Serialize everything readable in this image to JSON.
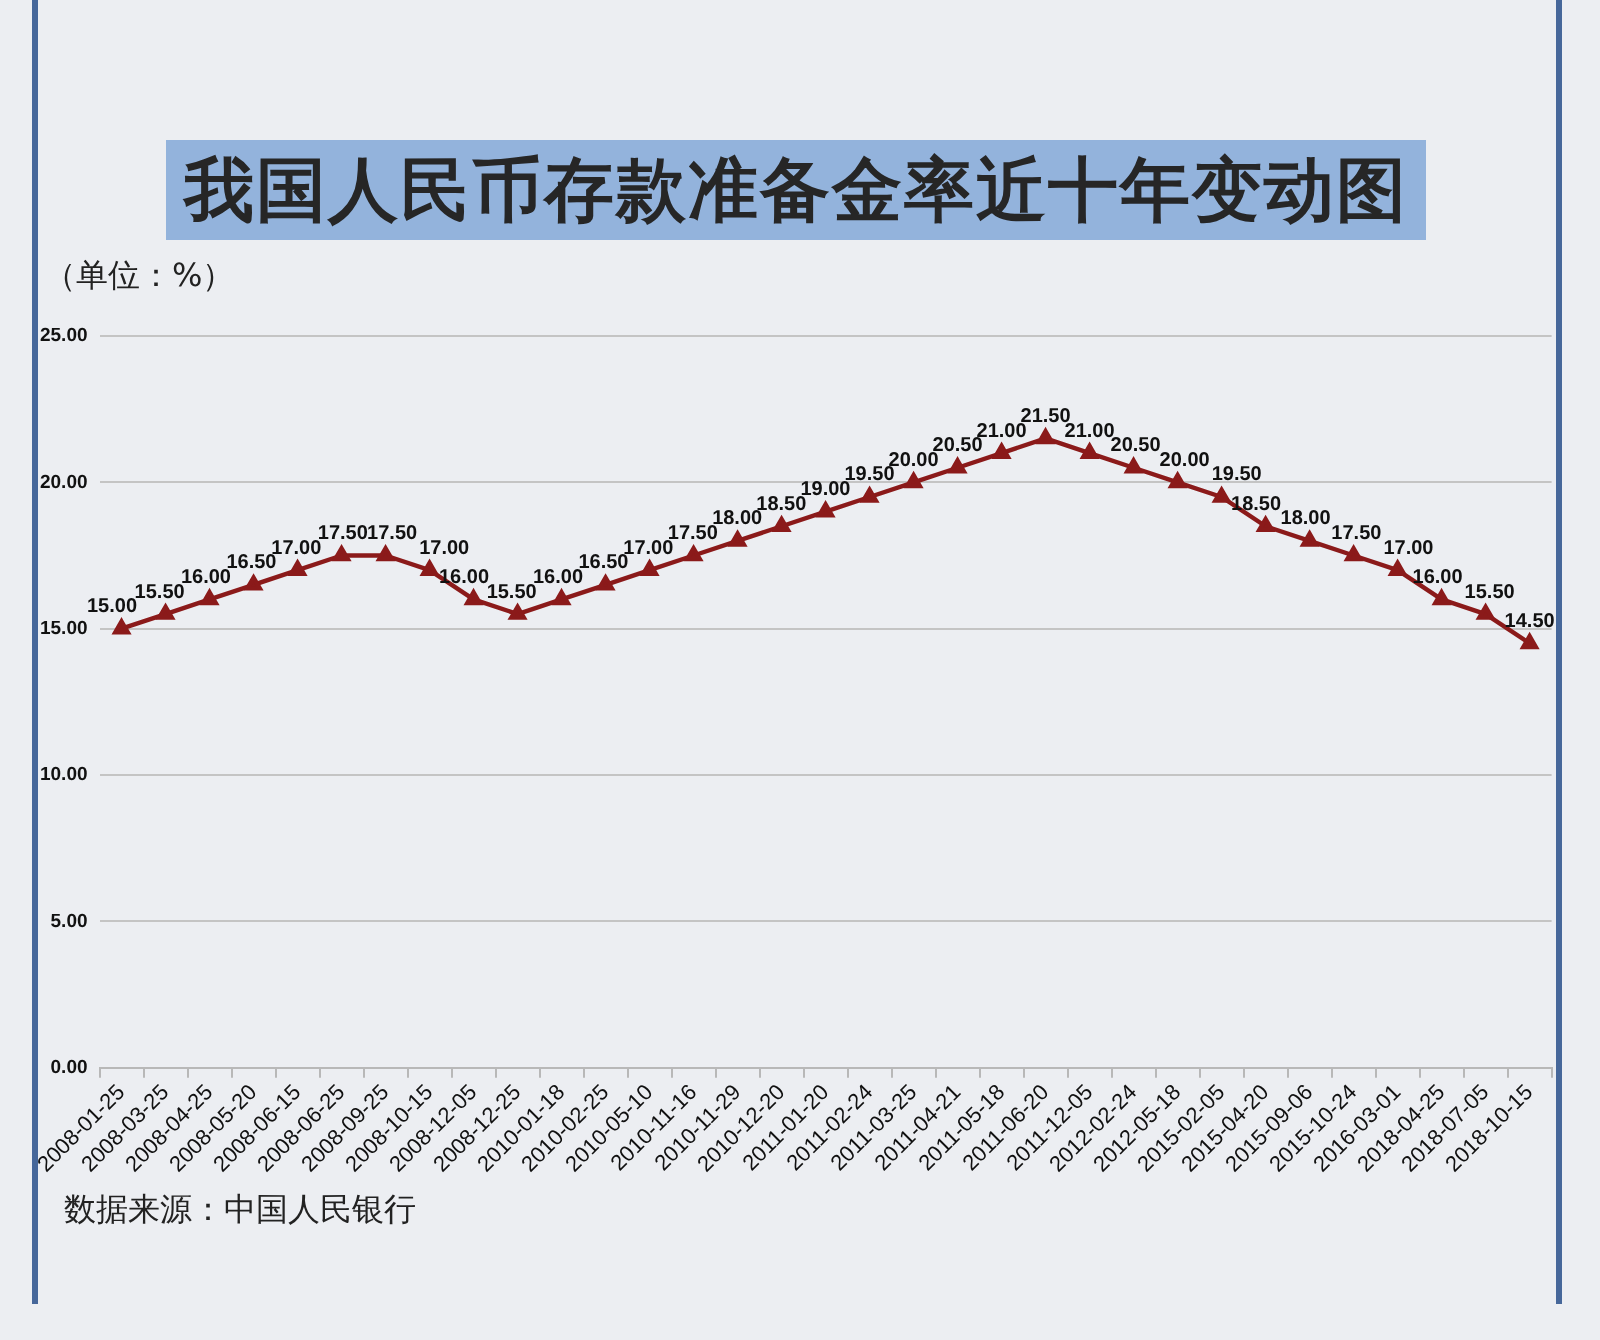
{
  "chart_data": {
    "type": "line",
    "title": "我国人民币存款准备金率近十年变动图",
    "ylabel": "（单位：%）",
    "annotations": [
      "数据来源：中国人民银行"
    ],
    "categories": [
      "2008-01-25",
      "2008-03-25",
      "2008-04-25",
      "2008-05-20",
      "2008-06-15",
      "2008-06-25",
      "2008-09-25",
      "2008-10-15",
      "2008-12-05",
      "2008-12-25",
      "2010-01-18",
      "2010-02-25",
      "2010-05-10",
      "2010-11-16",
      "2010-11-29",
      "2010-12-20",
      "2011-01-20",
      "2011-02-24",
      "2011-03-25",
      "2011-04-21",
      "2011-05-18",
      "2011-06-20",
      "2011-12-05",
      "2012-02-24",
      "2012-05-18",
      "2015-02-05",
      "2015-04-20",
      "2015-09-06",
      "2015-10-24",
      "2016-03-01",
      "2018-04-25",
      "2018-07-05",
      "2018-10-15"
    ],
    "values": [
      15,
      15.5,
      16,
      16.5,
      17,
      17.5,
      17.5,
      17,
      16,
      15.5,
      16,
      16.5,
      17,
      17.5,
      18,
      18.5,
      19,
      19.5,
      20,
      20.5,
      21,
      21.5,
      21,
      20.5,
      20,
      19.5,
      18.5,
      18,
      17.5,
      17,
      16,
      15.5,
      14.5
    ],
    "value_labels": [
      "15.00",
      "15.50",
      "16.00",
      "16.50",
      "17.00",
      "17.50",
      "17.50",
      "17.00",
      "16.00",
      "15.50",
      "16.00",
      "16.50",
      "17.00",
      "17.50",
      "18.00",
      "18.50",
      "19.00",
      "19.50",
      "20.00",
      "20.50",
      "21.00",
      "21.50",
      "21.00",
      "20.50",
      "20.00",
      "19.50",
      "18.50",
      "18.00",
      "17.50",
      "17.00",
      "16.00",
      "15.50",
      "14.50"
    ],
    "color": "#8b1a1a",
    "ylim": [
      0,
      25
    ],
    "yticks": [
      {
        "value": 0,
        "label": "0.00"
      },
      {
        "value": 5,
        "label": "5.00"
      },
      {
        "value": 10,
        "label": "10.00"
      },
      {
        "value": 15,
        "label": "15.00"
      },
      {
        "value": 20,
        "label": "20.00"
      },
      {
        "value": 25,
        "label": "25.00"
      }
    ],
    "grid": "y",
    "marker": "triangle",
    "line_style": "solid"
  }
}
